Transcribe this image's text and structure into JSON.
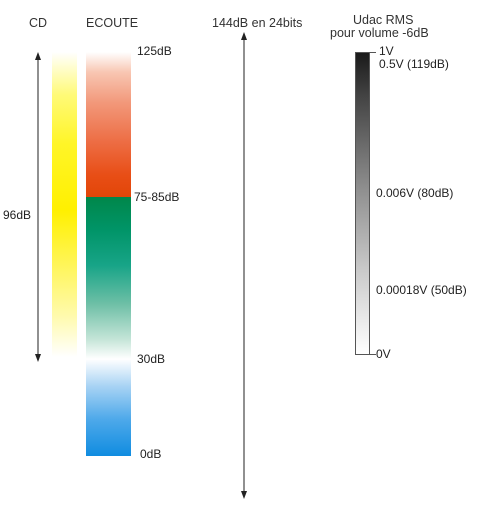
{
  "headers": {
    "cd": "CD",
    "ecoute": "ECOUTE",
    "bits": "144dB en 24bits",
    "udac_line1": "Udac RMS",
    "udac_line2": "pour volume -6dB"
  },
  "cd_range_label": "96dB",
  "ecoute_levels": {
    "top": "125dB",
    "upper_mid": "75-85dB",
    "lower_mid": "30dB",
    "bottom": "0dB"
  },
  "udac_levels": {
    "max": "1V",
    "l1": "0.5V (119dB)",
    "l2": "0.006V (80dB)",
    "l3": "0.00018V (50dB)",
    "min": "0V"
  },
  "colors": {
    "cd": "#fff000",
    "ecoute_loud": "#e24608",
    "ecoute_comfort": "#00874a",
    "ecoute_quiet": "#108ce0",
    "udac_dark": "#1a1a1a",
    "arrow": "#222222"
  }
}
